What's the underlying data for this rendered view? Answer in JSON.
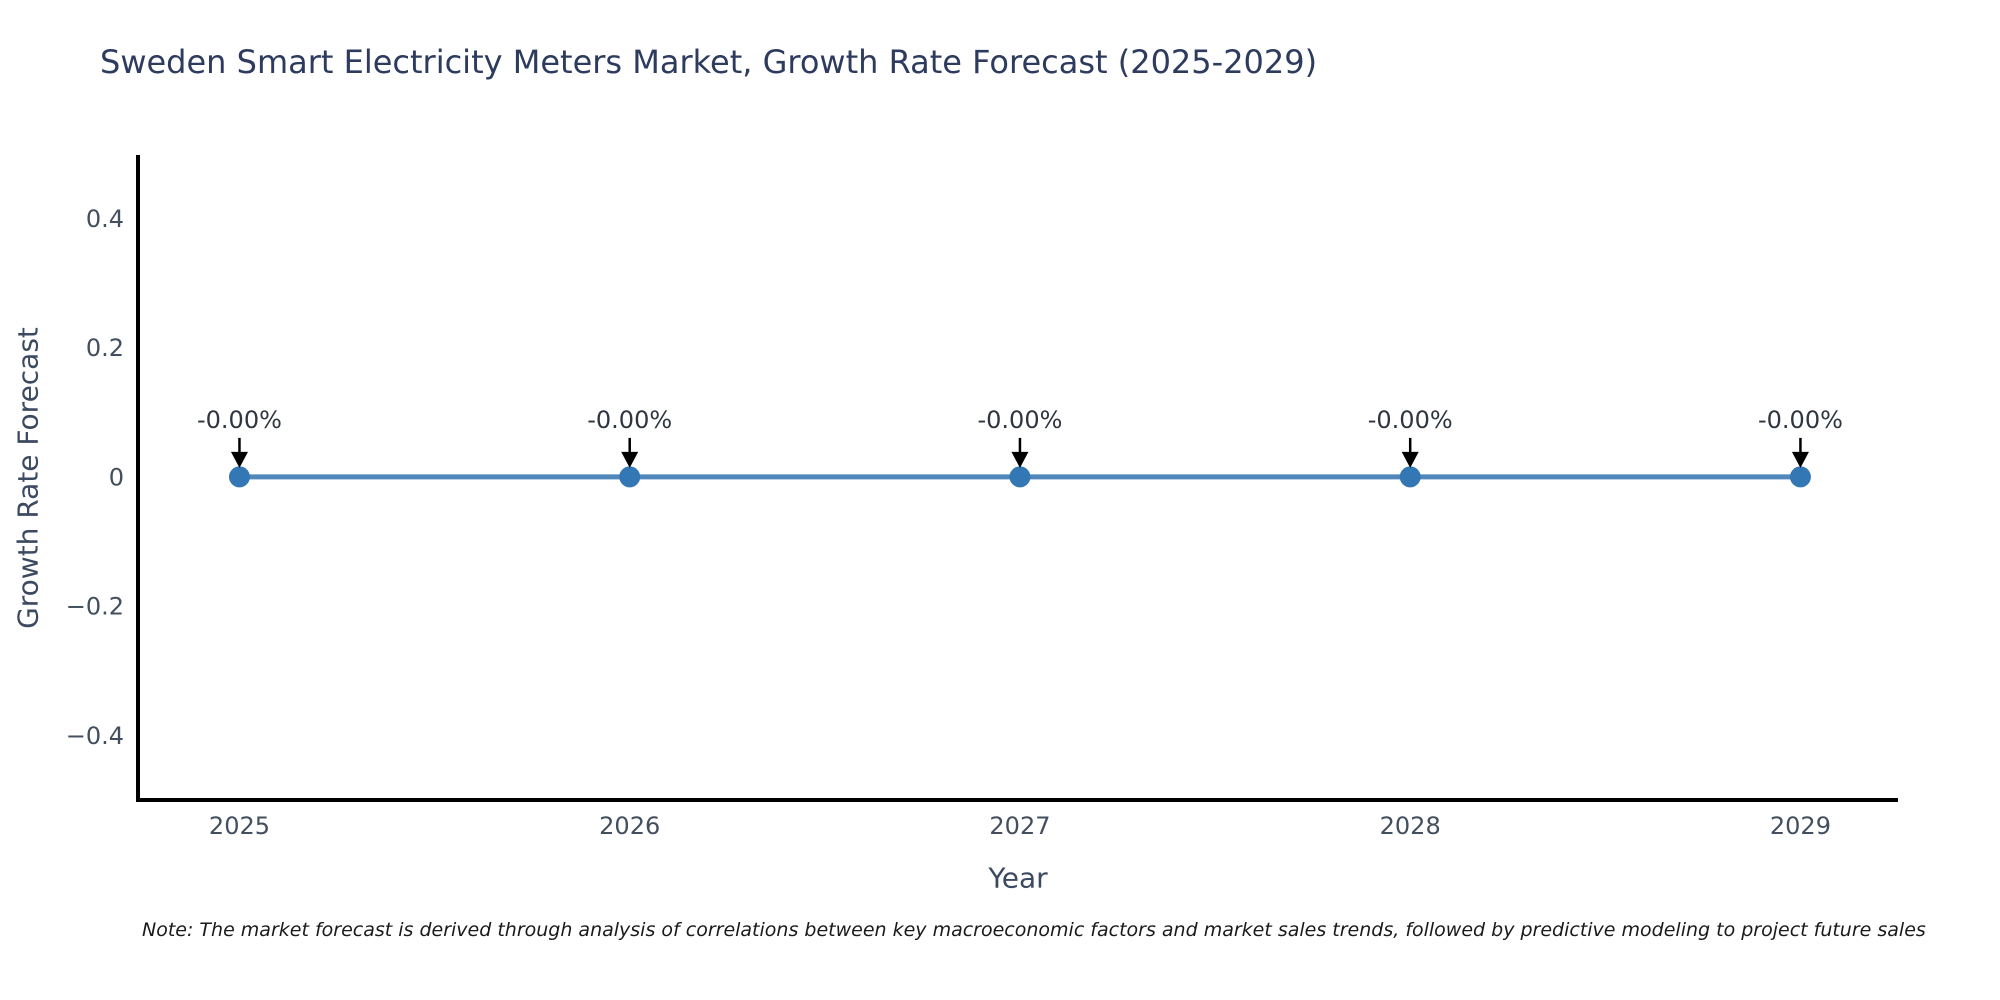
{
  "title": "Sweden Smart Electricity Meters Market, Growth Rate Forecast (2025-2029)",
  "note": "Note: The market forecast is derived through analysis of correlations between key macroeconomic factors and market sales trends, followed by predictive modeling to project future sales",
  "chart_data": {
    "type": "line",
    "title": "Sweden Smart Electricity Meters Market, Growth Rate Forecast (2025-2029)",
    "xlabel": "Year",
    "ylabel": "Growth Rate Forecast",
    "x": [
      2025,
      2026,
      2027,
      2028,
      2029
    ],
    "x_tick_labels": [
      "2025",
      "2026",
      "2027",
      "2028",
      "2029"
    ],
    "series": [
      {
        "name": "Growth Rate Forecast",
        "values": [
          0,
          0,
          0,
          0,
          0
        ],
        "point_labels": [
          "-0.00%",
          "-0.00%",
          "-0.00%",
          "-0.00%",
          "-0.00%"
        ]
      }
    ],
    "y_ticks": [
      0.4,
      0.2,
      0,
      -0.2,
      -0.4
    ],
    "y_tick_labels": [
      "0.4",
      "0.2",
      "0",
      "−0.2",
      "−0.4"
    ],
    "xlim": [
      2024.74,
      2029.25
    ],
    "ylim": [
      -0.5,
      0.495
    ],
    "grid": false,
    "legend_position": "none",
    "colors": {
      "line": "#5188bb",
      "marker": "#3377b4",
      "axis": "#000000",
      "tick_label": "#434f5e",
      "annotation_text": "#2f3640",
      "annotation_arrow": "#000000"
    }
  }
}
